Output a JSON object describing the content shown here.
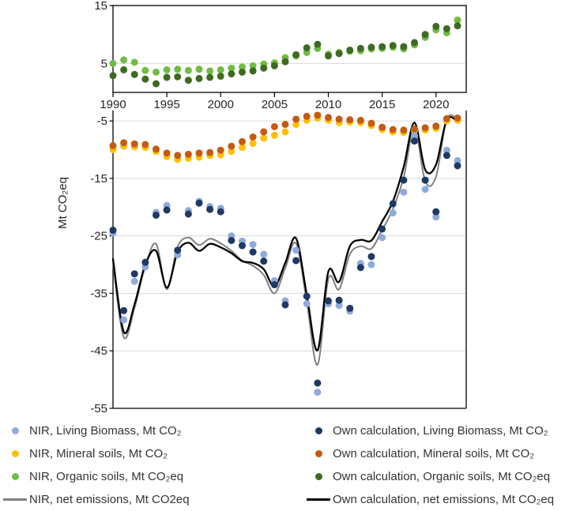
{
  "y_axis_label": "Mt CO₂eq",
  "colors": {
    "nir_living": "#8FAADC",
    "own_living": "#1F3864",
    "nir_mineral": "#FFC000",
    "own_mineral": "#C55A11",
    "nir_organic": "#70BC44",
    "own_organic": "#3E6B22",
    "nir_net": "#808080",
    "own_net": "#000000",
    "grid": "#D9D9D9",
    "axis": "#000000",
    "tick_text": "#262626"
  },
  "chart_data": {
    "type": "scatter",
    "x": [
      1990,
      1991,
      1992,
      1993,
      1994,
      1995,
      1996,
      1997,
      1998,
      1999,
      2000,
      2001,
      2002,
      2003,
      2004,
      2005,
      2006,
      2007,
      2008,
      2009,
      2010,
      2011,
      2012,
      2013,
      2014,
      2015,
      2016,
      2017,
      2018,
      2019,
      2020,
      2021,
      2022
    ],
    "x_ticks": [
      1990,
      1995,
      2000,
      2005,
      2010,
      2015,
      2020
    ],
    "top_panel": {
      "ylim": [
        0,
        15
      ],
      "y_ticks": [
        5,
        15
      ],
      "grid_values": [
        5
      ],
      "series": [
        {
          "name": "NIR, Organic soils, Mt CO₂eq",
          "type": "scatter",
          "color_key": "nir_organic",
          "values": [
            5.0,
            5.6,
            5.2,
            3.8,
            3.5,
            3.9,
            4.0,
            3.8,
            4.0,
            3.7,
            3.9,
            4.2,
            4.4,
            4.6,
            4.9,
            5.1,
            6.0,
            6.3,
            6.9,
            7.6,
            6.6,
            6.9,
            7.1,
            7.2,
            7.5,
            7.6,
            7.8,
            7.5,
            8.2,
            9.5,
            10.8,
            10.3,
            12.5
          ]
        },
        {
          "name": "Own calculation, Organic soils, Mt CO₂eq",
          "type": "scatter",
          "color_key": "own_organic",
          "values": [
            2.9,
            3.9,
            3.1,
            2.3,
            1.5,
            2.6,
            2.7,
            2.1,
            2.4,
            2.6,
            2.8,
            3.2,
            3.5,
            3.7,
            4.2,
            4.6,
            5.3,
            6.5,
            7.7,
            8.3,
            6.3,
            6.7,
            7.3,
            7.6,
            7.8,
            7.9,
            8.1,
            7.9,
            8.6,
            10.0,
            11.4,
            11.0,
            11.5
          ]
        }
      ]
    },
    "main_panel": {
      "ylim": [
        -55,
        -3.2
      ],
      "ylabel": "Mt CO₂eq",
      "y_ticks": [
        -5,
        -15,
        -25,
        -35,
        -45,
        -55
      ],
      "grid_values": [
        -5,
        -15,
        -25,
        -35,
        -45
      ],
      "series": [
        {
          "name": "NIR, net emissions, Mt CO2eq",
          "type": "line",
          "color_key": "nir_net",
          "width": 2,
          "values": [
            -29.8,
            -42.6,
            -37.5,
            -30.3,
            -26.4,
            -34.3,
            -26.9,
            -25.3,
            -26.6,
            -25.5,
            -26.3,
            -27.6,
            -29.3,
            -30.2,
            -31.8,
            -35.0,
            -30.6,
            -26.3,
            -36.5,
            -47.4,
            -32.5,
            -34.3,
            -28.2,
            -26.8,
            -27.2,
            -24.0,
            -20.3,
            -14.8,
            -6.2,
            -15.5,
            -14.7,
            -4.7,
            -4.7
          ]
        },
        {
          "name": "Own calculation, net emissions, Mt CO₂eq",
          "type": "line",
          "color_key": "own_net",
          "width": 2.3,
          "values": [
            -29.0,
            -41.7,
            -36.9,
            -30.0,
            -27.6,
            -34.0,
            -27.8,
            -26.2,
            -27.6,
            -26.4,
            -27.0,
            -28.0,
            -29.4,
            -29.7,
            -30.8,
            -33.8,
            -29.7,
            -25.4,
            -35.3,
            -44.9,
            -31.2,
            -33.0,
            -26.8,
            -25.7,
            -25.8,
            -22.5,
            -19.0,
            -13.0,
            -5.3,
            -13.5,
            -12.6,
            -4.8,
            -5.1
          ]
        },
        {
          "name": "NIR, Mineral soils, Mt CO₂",
          "type": "scatter",
          "color_key": "nir_mineral",
          "values": [
            -10.0,
            -9.4,
            -9.5,
            -9.6,
            -10.3,
            -11.2,
            -11.7,
            -11.5,
            -11.3,
            -11.0,
            -10.9,
            -10.3,
            -9.6,
            -8.9,
            -8.0,
            -7.5,
            -6.9,
            -5.6,
            -4.9,
            -4.5,
            -4.9,
            -5.3,
            -5.2,
            -5.3,
            -5.8,
            -6.5,
            -6.9,
            -7.0,
            -6.7,
            -6.6,
            -6.3,
            -5.0,
            -4.9
          ]
        },
        {
          "name": "Own calculation, Mineral soils, Mt CO₂",
          "type": "scatter",
          "color_key": "own_mineral",
          "values": [
            -9.3,
            -8.8,
            -9.0,
            -9.1,
            -9.9,
            -10.6,
            -11.0,
            -10.8,
            -10.6,
            -10.5,
            -10.1,
            -9.4,
            -8.6,
            -7.8,
            -6.9,
            -6.0,
            -5.6,
            -4.7,
            -4.2,
            -4.0,
            -4.4,
            -4.7,
            -4.8,
            -4.9,
            -5.4,
            -6.1,
            -6.5,
            -6.6,
            -6.4,
            -6.2,
            -5.9,
            -4.6,
            -4.5
          ]
        },
        {
          "name": "NIR, Living Biomass, Mt CO₂",
          "type": "scatter",
          "color_key": "nir_living",
          "values": [
            -24.5,
            -39.6,
            -32.9,
            -30.4,
            -20.9,
            -19.7,
            -28.3,
            -20.6,
            -19.0,
            -19.9,
            -20.2,
            -25.0,
            -25.9,
            -26.5,
            -28.2,
            -32.8,
            -36.3,
            -27.5,
            -36.8,
            -52.2,
            -36.8,
            -37.1,
            -38.1,
            -29.8,
            -30.0,
            -25.3,
            -21.0,
            -17.4,
            -7.6,
            -16.9,
            -21.7,
            -10.1,
            -11.9
          ]
        },
        {
          "name": "Own calculation, Living Biomass, Mt CO₂",
          "type": "scatter",
          "color_key": "own_living",
          "values": [
            -24.0,
            -38.0,
            -31.6,
            -29.6,
            -21.4,
            -20.5,
            -27.5,
            -21.2,
            -19.3,
            -20.4,
            -20.8,
            -25.8,
            -26.7,
            -27.8,
            -29.4,
            -33.5,
            -37.0,
            -29.3,
            -35.5,
            -50.6,
            -36.3,
            -36.2,
            -37.6,
            -30.5,
            -28.6,
            -23.8,
            -19.4,
            -15.3,
            -8.5,
            -15.3,
            -20.8,
            -11.0,
            -12.8
          ]
        }
      ]
    }
  },
  "legend": {
    "left": [
      {
        "label": "NIR, Living Biomass, Mt CO₂",
        "marker": "dot",
        "color_key": "nir_living"
      },
      {
        "label": "NIR, Mineral soils, Mt CO₂",
        "marker": "dot",
        "color_key": "nir_mineral"
      },
      {
        "label": "NIR, Organic soils, Mt CO₂eq",
        "marker": "dot",
        "color_key": "nir_organic"
      },
      {
        "label": "NIR, net emissions, Mt CO2eq",
        "marker": "line",
        "color_key": "nir_net"
      }
    ],
    "right": [
      {
        "label": "Own calculation, Living Biomass, Mt CO₂",
        "marker": "dot",
        "color_key": "own_living"
      },
      {
        "label": "Own calculation, Mineral soils, Mt CO₂",
        "marker": "dot",
        "color_key": "own_mineral"
      },
      {
        "label": "Own calculation, Organic soils, Mt CO₂eq",
        "marker": "dot",
        "color_key": "own_organic"
      },
      {
        "label": "Own calculation, net emissions, Mt CO₂eq",
        "marker": "line",
        "color_key": "own_net"
      }
    ]
  }
}
